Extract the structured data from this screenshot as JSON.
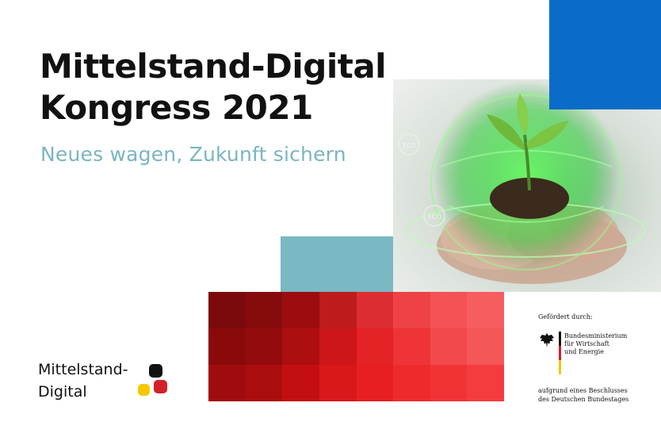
{
  "headline": {
    "line1": "Mittelstand-Digital",
    "line2": "Kongress 2021",
    "subtitle": "Neues wagen, Zukunft sichern"
  },
  "photo": {
    "eco_label": "ECO"
  },
  "logo": {
    "line1": "Mittelstand-",
    "line2": "Digital"
  },
  "funding": {
    "label": "Gefördert durch:",
    "ministry_lines": [
      "Bundesministerium",
      "für Wirtschaft",
      "und Energie"
    ],
    "resolution_lines": [
      "aufgrund eines Beschlusses",
      "des Deutschen Bundestages"
    ]
  },
  "colors": {
    "blue": "#0a6cc8",
    "teal": "#7ab8c3",
    "subtitle": "#7ab5c2",
    "flag_black": "#111111",
    "flag_red": "#d3212a",
    "flag_gold": "#f5c800",
    "grid": [
      [
        "#7a0a0c",
        "#860b0d",
        "#9b0d0f",
        "#be1b1d",
        "#dc2e30",
        "#ee4244",
        "#f45254",
        "#f65d5f"
      ],
      [
        "#8a0a0c",
        "#940b0d",
        "#ad0e10",
        "#cc1619",
        "#e42326",
        "#ee3436",
        "#f2494b",
        "#f55658"
      ],
      [
        "#a00c0e",
        "#ab0d0f",
        "#c30f12",
        "#d9181b",
        "#e81f22",
        "#ef2a2c",
        "#f23335",
        "#f43c3e"
      ]
    ]
  }
}
